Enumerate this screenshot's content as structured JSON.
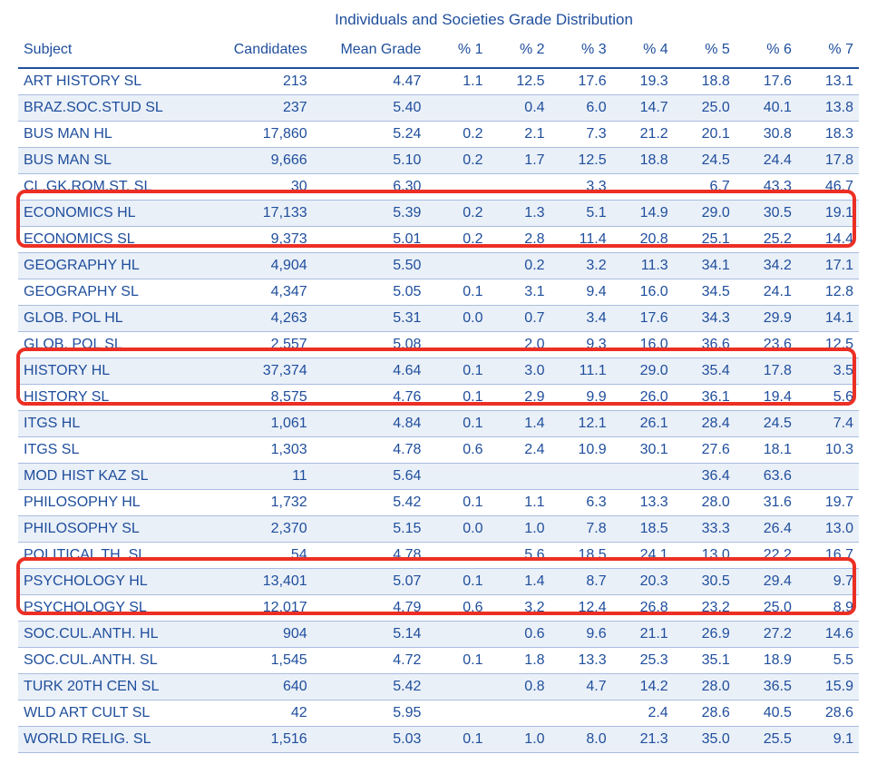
{
  "title": "Individuals and Societies Grade Distribution",
  "columns": [
    "Subject",
    "Candidates",
    "Mean Grade",
    "% 1",
    "% 2",
    "% 3",
    "% 4",
    "% 5",
    "% 6",
    "% 7"
  ],
  "rows": [
    {
      "subject": "ART HISTORY SL",
      "candidates": "213",
      "mean": "4.47",
      "p1": "1.1",
      "p2": "12.5",
      "p3": "17.6",
      "p4": "19.3",
      "p5": "18.8",
      "p6": "17.6",
      "p7": "13.1"
    },
    {
      "subject": "BRAZ.SOC.STUD SL",
      "candidates": "237",
      "mean": "5.40",
      "p1": "",
      "p2": "0.4",
      "p3": "6.0",
      "p4": "14.7",
      "p5": "25.0",
      "p6": "40.1",
      "p7": "13.8"
    },
    {
      "subject": "BUS MAN HL",
      "candidates": "17,860",
      "mean": "5.24",
      "p1": "0.2",
      "p2": "2.1",
      "p3": "7.3",
      "p4": "21.2",
      "p5": "20.1",
      "p6": "30.8",
      "p7": "18.3"
    },
    {
      "subject": "BUS MAN SL",
      "candidates": "9,666",
      "mean": "5.10",
      "p1": "0.2",
      "p2": "1.7",
      "p3": "12.5",
      "p4": "18.8",
      "p5": "24.5",
      "p6": "24.4",
      "p7": "17.8"
    },
    {
      "subject": "CL.GK.ROM.ST. SL",
      "candidates": "30",
      "mean": "6.30",
      "p1": "",
      "p2": "",
      "p3": "3.3",
      "p4": "",
      "p5": "6.7",
      "p6": "43.3",
      "p7": "46.7"
    },
    {
      "subject": "ECONOMICS HL",
      "candidates": "17,133",
      "mean": "5.39",
      "p1": "0.2",
      "p2": "1.3",
      "p3": "5.1",
      "p4": "14.9",
      "p5": "29.0",
      "p6": "30.5",
      "p7": "19.1"
    },
    {
      "subject": "ECONOMICS SL",
      "candidates": "9,373",
      "mean": "5.01",
      "p1": "0.2",
      "p2": "2.8",
      "p3": "11.4",
      "p4": "20.8",
      "p5": "25.1",
      "p6": "25.2",
      "p7": "14.4"
    },
    {
      "subject": "GEOGRAPHY HL",
      "candidates": "4,904",
      "mean": "5.50",
      "p1": "",
      "p2": "0.2",
      "p3": "3.2",
      "p4": "11.3",
      "p5": "34.1",
      "p6": "34.2",
      "p7": "17.1"
    },
    {
      "subject": "GEOGRAPHY SL",
      "candidates": "4,347",
      "mean": "5.05",
      "p1": "0.1",
      "p2": "3.1",
      "p3": "9.4",
      "p4": "16.0",
      "p5": "34.5",
      "p6": "24.1",
      "p7": "12.8"
    },
    {
      "subject": "GLOB. POL HL",
      "candidates": "4,263",
      "mean": "5.31",
      "p1": "0.0",
      "p2": "0.7",
      "p3": "3.4",
      "p4": "17.6",
      "p5": "34.3",
      "p6": "29.9",
      "p7": "14.1"
    },
    {
      "subject": "GLOB. POL SL",
      "candidates": "2,557",
      "mean": "5.08",
      "p1": "",
      "p2": "2.0",
      "p3": "9.3",
      "p4": "16.0",
      "p5": "36.6",
      "p6": "23.6",
      "p7": "12.5"
    },
    {
      "subject": "HISTORY HL",
      "candidates": "37,374",
      "mean": "4.64",
      "p1": "0.1",
      "p2": "3.0",
      "p3": "11.1",
      "p4": "29.0",
      "p5": "35.4",
      "p6": "17.8",
      "p7": "3.5"
    },
    {
      "subject": "HISTORY SL",
      "candidates": "8,575",
      "mean": "4.76",
      "p1": "0.1",
      "p2": "2.9",
      "p3": "9.9",
      "p4": "26.0",
      "p5": "36.1",
      "p6": "19.4",
      "p7": "5.6"
    },
    {
      "subject": "ITGS HL",
      "candidates": "1,061",
      "mean": "4.84",
      "p1": "0.1",
      "p2": "1.4",
      "p3": "12.1",
      "p4": "26.1",
      "p5": "28.4",
      "p6": "24.5",
      "p7": "7.4"
    },
    {
      "subject": "ITGS SL",
      "candidates": "1,303",
      "mean": "4.78",
      "p1": "0.6",
      "p2": "2.4",
      "p3": "10.9",
      "p4": "30.1",
      "p5": "27.6",
      "p6": "18.1",
      "p7": "10.3"
    },
    {
      "subject": "MOD HIST KAZ SL",
      "candidates": "11",
      "mean": "5.64",
      "p1": "",
      "p2": "",
      "p3": "",
      "p4": "",
      "p5": "36.4",
      "p6": "63.6",
      "p7": ""
    },
    {
      "subject": "PHILOSOPHY HL",
      "candidates": "1,732",
      "mean": "5.42",
      "p1": "0.1",
      "p2": "1.1",
      "p3": "6.3",
      "p4": "13.3",
      "p5": "28.0",
      "p6": "31.6",
      "p7": "19.7"
    },
    {
      "subject": "PHILOSOPHY SL",
      "candidates": "2,370",
      "mean": "5.15",
      "p1": "0.0",
      "p2": "1.0",
      "p3": "7.8",
      "p4": "18.5",
      "p5": "33.3",
      "p6": "26.4",
      "p7": "13.0"
    },
    {
      "subject": "POLITICAL TH. SL",
      "candidates": "54",
      "mean": "4.78",
      "p1": "",
      "p2": "5.6",
      "p3": "18.5",
      "p4": "24.1",
      "p5": "13.0",
      "p6": "22.2",
      "p7": "16.7"
    },
    {
      "subject": "PSYCHOLOGY HL",
      "candidates": "13,401",
      "mean": "5.07",
      "p1": "0.1",
      "p2": "1.4",
      "p3": "8.7",
      "p4": "20.3",
      "p5": "30.5",
      "p6": "29.4",
      "p7": "9.7"
    },
    {
      "subject": "PSYCHOLOGY SL",
      "candidates": "12,017",
      "mean": "4.79",
      "p1": "0.6",
      "p2": "3.2",
      "p3": "12.4",
      "p4": "26.8",
      "p5": "23.2",
      "p6": "25.0",
      "p7": "8.9"
    },
    {
      "subject": "SOC.CUL.ANTH. HL",
      "candidates": "904",
      "mean": "5.14",
      "p1": "",
      "p2": "0.6",
      "p3": "9.6",
      "p4": "21.1",
      "p5": "26.9",
      "p6": "27.2",
      "p7": "14.6"
    },
    {
      "subject": "SOC.CUL.ANTH. SL",
      "candidates": "1,545",
      "mean": "4.72",
      "p1": "0.1",
      "p2": "1.8",
      "p3": "13.3",
      "p4": "25.3",
      "p5": "35.1",
      "p6": "18.9",
      "p7": "5.5"
    },
    {
      "subject": "TURK 20TH CEN SL",
      "candidates": "640",
      "mean": "5.42",
      "p1": "",
      "p2": "0.8",
      "p3": "4.7",
      "p4": "14.2",
      "p5": "28.0",
      "p6": "36.5",
      "p7": "15.9"
    },
    {
      "subject": "WLD ART CULT SL",
      "candidates": "42",
      "mean": "5.95",
      "p1": "",
      "p2": "",
      "p3": "",
      "p4": "2.4",
      "p5": "28.6",
      "p6": "40.5",
      "p7": "28.6"
    },
    {
      "subject": "WORLD RELIG. SL",
      "candidates": "1,516",
      "mean": "5.03",
      "p1": "0.1",
      "p2": "1.0",
      "p3": "8.0",
      "p4": "21.3",
      "p5": "35.0",
      "p6": "25.5",
      "p7": "9.1"
    }
  ],
  "highlight_color": "#ec2f24",
  "text_color": "#1f4e9c",
  "row_stripe_color": "#eaf0f8",
  "border_color": "#a8bce0"
}
